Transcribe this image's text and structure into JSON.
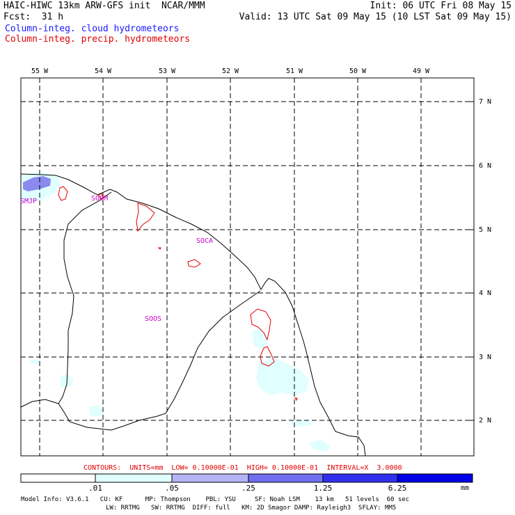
{
  "header": {
    "model_title": "HAIC-HIWC 13km ARW-GFS init  NCAR/MMM",
    "init": "Init: 06 UTC Fri 08 May 15",
    "fcst_label": "Fcst:  31 h",
    "valid": "Valid: 13 UTC Sat 09 May 15 (10 LST Sat 09 May 15)",
    "legend_cloud": "Column-integ. cloud hydrometeors",
    "legend_precip": "Column-integ. precip. hydrometeors"
  },
  "colors": {
    "cloud": "#1a1aff",
    "precip": "#e00000",
    "station": "#cc00cc",
    "fill_1": "#e0ffff",
    "fill_2": "#b4b4f5",
    "fill_3": "#6f6ff0",
    "fill_4": "#3030ee",
    "fill_5": "#0000e6"
  },
  "map": {
    "lon_labels": [
      "55 W",
      "54 W",
      "53 W",
      "52 W",
      "51 W",
      "50 W",
      "49 W"
    ],
    "lat_labels": [
      "7 N",
      "6 N",
      "5 N",
      "4 N",
      "3 N",
      "2 N"
    ],
    "stations": [
      "SMJP",
      "SOGM",
      "SOCA",
      "SOOS"
    ]
  },
  "contour_info": "CONTOURS:  UNITS=mm  LOW= 0.10000E-01  HIGH= 0.10000E-01  INTERVAL=X  3.0000",
  "colorbar": {
    "labels": [
      ".01",
      ".05",
      ".25",
      "1.25",
      "6.25"
    ],
    "unit": "mm"
  },
  "footer": {
    "line1": "Model Info: V3.6.1   CU: KF      MP: Thompson    PBL: YSU     SF: Noah LSM    13 km   51 levels  60 sec",
    "line2": "LW: RRTMG   SW: RRTMG  DIFF: full   KM: 2D Smagor DAMP: Rayleigh3  SFLAY: MM5"
  }
}
